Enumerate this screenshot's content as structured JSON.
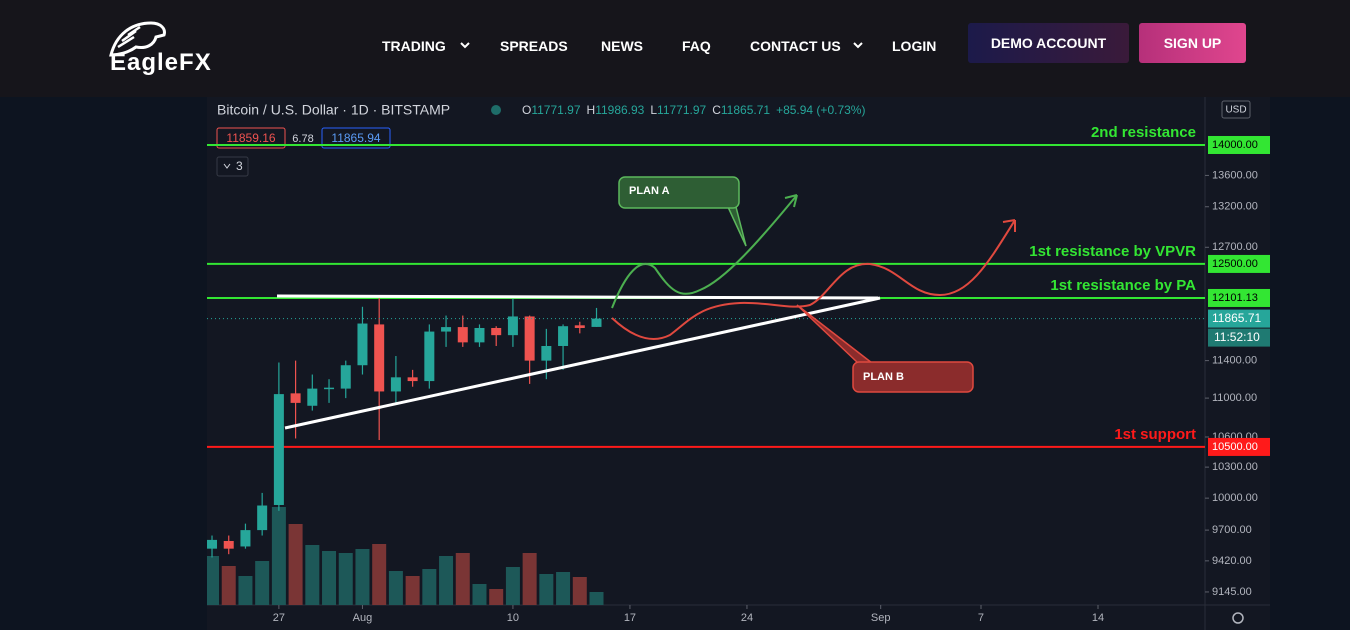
{
  "header": {
    "logo": "EagleFX",
    "nav": [
      "TRADING",
      "SPREADS",
      "NEWS",
      "FAQ",
      "CONTACT US",
      "LOGIN"
    ],
    "demo_button": "DEMO ACCOUNT",
    "signup_button": "SIGN UP"
  },
  "chart_data": {
    "type": "candlestick",
    "symbol": "Bitcoin / U.S. Dollar · 1D · BITSTAMP",
    "ohlc_letters": [
      "O",
      "H",
      "L",
      "C"
    ],
    "change": "+85.94 (+0.73%)",
    "bid": "11859.16",
    "spread": "6.78",
    "ask": "11865.94",
    "indicators_count": "3",
    "currency": "USD",
    "timer": "11:52:10",
    "log_scale": true,
    "ylim": [
      9032,
      14655
    ],
    "yticks": [
      {
        "value": 13600,
        "label": "13600.00"
      },
      {
        "value": 13200,
        "label": "13200.00"
      },
      {
        "value": 12700,
        "label": "12700.00"
      },
      {
        "value": 11400,
        "label": "11400.00"
      },
      {
        "value": 11000,
        "label": "11000.00"
      },
      {
        "value": 10600,
        "label": "10600.00"
      },
      {
        "value": 10300,
        "label": "10300.00"
      },
      {
        "value": 10000,
        "label": "10000.00"
      },
      {
        "value": 9700,
        "label": "9700.00"
      },
      {
        "value": 9420,
        "label": "9420.00"
      },
      {
        "value": 9145,
        "label": "9145.00"
      }
    ],
    "xlim": [
      204.7,
      264.4
    ],
    "xticks": [
      {
        "value": 209,
        "label": "27"
      },
      {
        "value": 214,
        "label": "Aug"
      },
      {
        "value": 223,
        "label": "10"
      },
      {
        "value": 230,
        "label": "17"
      },
      {
        "value": 237,
        "label": "24"
      },
      {
        "value": 245,
        "label": "Sep"
      },
      {
        "value": 251,
        "label": "7"
      },
      {
        "value": 258,
        "label": "14"
      }
    ],
    "x": [
      205,
      206,
      207,
      208,
      209,
      210,
      211,
      212,
      213,
      214,
      215,
      216,
      217,
      218,
      219,
      220,
      221,
      222,
      223,
      224,
      225,
      226,
      227,
      228
    ],
    "open": [
      9530,
      9600,
      9550,
      9700,
      9935,
      11050,
      10920,
      11100,
      11100,
      11350,
      11800,
      11070,
      11220,
      11180,
      11720,
      11770,
      11600,
      11760,
      11680,
      11890,
      11400,
      11560,
      11790,
      11771.97
    ],
    "high": [
      9650,
      9650,
      9760,
      10050,
      11380,
      11400,
      11250,
      11200,
      11400,
      12000,
      12100,
      11450,
      11300,
      11800,
      11900,
      11900,
      11800,
      11780,
      12090,
      11900,
      11750,
      11800,
      11830,
      11986.93
    ],
    "low": [
      9450,
      9480,
      9530,
      9650,
      9880,
      10585,
      10870,
      10950,
      11000,
      11250,
      10570,
      10950,
      11120,
      11100,
      11550,
      11550,
      11550,
      11560,
      11550,
      11150,
      11200,
      11300,
      11700,
      11771.97
    ],
    "close": [
      9610,
      9530,
      9700,
      9930,
      11042,
      10950,
      11100,
      11110,
      11350,
      11810,
      11070,
      11220,
      11180,
      11720,
      11770,
      11600,
      11760,
      11680,
      11890,
      11400,
      11560,
      11780,
      11760,
      11865.71
    ],
    "volume": [
      49,
      39,
      29,
      44,
      98,
      81,
      60,
      54,
      52,
      56,
      61,
      34,
      29,
      36,
      49,
      52,
      21,
      16,
      38,
      52,
      31,
      33,
      28,
      13
    ],
    "up_color": "#26a69a",
    "down_color": "#ef5350",
    "levels": [
      {
        "value": 14000,
        "price_label": "14000.00",
        "name": "2nd resistance",
        "color": "#33e633"
      },
      {
        "value": 12500,
        "price_label": "12500.00",
        "name": "1st resistance by VPVR",
        "color": "#33e633"
      },
      {
        "value": 12101.13,
        "name": "1st resistance by PA",
        "color": "#33e633"
      },
      {
        "value": 10500,
        "price_label": "10500.00",
        "name": "1st support",
        "color": "#ff1a1a"
      }
    ],
    "annotations": [
      "PLAN A",
      "PLAN B"
    ]
  }
}
